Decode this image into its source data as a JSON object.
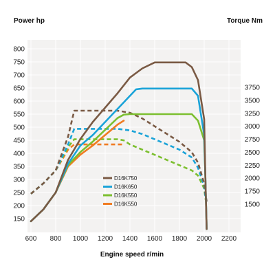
{
  "chart_data": {
    "type": "line",
    "title": "",
    "left_axis_title": "Power hp",
    "right_axis_title": "Torque Nm",
    "xlabel": "Engine speed r/min",
    "x_ticks": [
      "600",
      "800",
      "1000",
      "1200",
      "1400",
      "1600",
      "1800",
      "2000",
      "2200"
    ],
    "left_ticks": [
      "150",
      "200",
      "250",
      "300",
      "350",
      "400",
      "450",
      "500",
      "550",
      "600",
      "650",
      "700",
      "750",
      "800"
    ],
    "right_ticks": [
      "1500",
      "1750",
      "2000",
      "2250",
      "2500",
      "2750",
      "3000",
      "3250",
      "3500",
      "3750"
    ],
    "xlim": [
      600,
      2200
    ],
    "left_ylim": [
      150,
      800
    ],
    "right_ylim": [
      1500,
      3750
    ],
    "grid": true,
    "legend_position": "center",
    "series": [
      {
        "name": "D16K750",
        "color": "#7a5a44",
        "power": [
          [
            600,
            140
          ],
          [
            700,
            185
          ],
          [
            800,
            250
          ],
          [
            900,
            375
          ],
          [
            1000,
            455
          ],
          [
            1100,
            520
          ],
          [
            1200,
            575
          ],
          [
            1300,
            630
          ],
          [
            1400,
            690
          ],
          [
            1500,
            725
          ],
          [
            1600,
            748
          ],
          [
            1700,
            748
          ],
          [
            1800,
            748
          ],
          [
            1850,
            748
          ],
          [
            1900,
            730
          ],
          [
            1950,
            680
          ],
          [
            2000,
            530
          ],
          [
            2010,
            300
          ],
          [
            2020,
            110
          ]
        ],
        "torque": [
          [
            600,
            1700
          ],
          [
            700,
            1900
          ],
          [
            800,
            2150
          ],
          [
            900,
            2800
          ],
          [
            950,
            3300
          ],
          [
            1000,
            3300
          ],
          [
            1100,
            3300
          ],
          [
            1200,
            3300
          ],
          [
            1300,
            3300
          ],
          [
            1400,
            3260
          ],
          [
            1500,
            3150
          ],
          [
            1600,
            3000
          ],
          [
            1700,
            2850
          ],
          [
            1800,
            2700
          ],
          [
            1900,
            2500
          ],
          [
            1950,
            2300
          ],
          [
            2000,
            1900
          ],
          [
            2010,
            1700
          ],
          [
            2020,
            1550
          ]
        ]
      },
      {
        "name": "D16K650",
        "color": "#1aa3d8",
        "power": [
          [
            600,
            140
          ],
          [
            700,
            185
          ],
          [
            800,
            250
          ],
          [
            900,
            360
          ],
          [
            1000,
            430
          ],
          [
            1100,
            470
          ],
          [
            1200,
            520
          ],
          [
            1300,
            570
          ],
          [
            1400,
            620
          ],
          [
            1450,
            645
          ],
          [
            1500,
            648
          ],
          [
            1600,
            648
          ],
          [
            1700,
            648
          ],
          [
            1800,
            648
          ],
          [
            1900,
            648
          ],
          [
            1950,
            620
          ],
          [
            2000,
            470
          ],
          [
            2010,
            300
          ],
          [
            2020,
            110
          ]
        ],
        "torque": [
          [
            600,
            1700
          ],
          [
            700,
            1900
          ],
          [
            800,
            2150
          ],
          [
            900,
            2650
          ],
          [
            950,
            2950
          ],
          [
            1000,
            2950
          ],
          [
            1100,
            2950
          ],
          [
            1200,
            2950
          ],
          [
            1300,
            2950
          ],
          [
            1400,
            2920
          ],
          [
            1500,
            2850
          ],
          [
            1600,
            2750
          ],
          [
            1700,
            2650
          ],
          [
            1800,
            2550
          ],
          [
            1900,
            2400
          ],
          [
            1950,
            2200
          ],
          [
            2000,
            1850
          ],
          [
            2010,
            1650
          ],
          [
            2020,
            1550
          ]
        ]
      },
      {
        "name": "D16K550",
        "color": "#7cbf2f",
        "power": [
          [
            600,
            140
          ],
          [
            700,
            185
          ],
          [
            800,
            250
          ],
          [
            900,
            355
          ],
          [
            1000,
            405
          ],
          [
            1100,
            445
          ],
          [
            1200,
            490
          ],
          [
            1300,
            535
          ],
          [
            1350,
            548
          ],
          [
            1400,
            550
          ],
          [
            1500,
            550
          ],
          [
            1600,
            550
          ],
          [
            1700,
            550
          ],
          [
            1800,
            550
          ],
          [
            1900,
            550
          ],
          [
            1950,
            525
          ],
          [
            2000,
            450
          ],
          [
            2010,
            300
          ],
          [
            2020,
            110
          ]
        ],
        "torque": [
          [
            600,
            1700
          ],
          [
            700,
            1900
          ],
          [
            800,
            2150
          ],
          [
            900,
            2600
          ],
          [
            950,
            2750
          ],
          [
            1000,
            2750
          ],
          [
            1100,
            2750
          ],
          [
            1200,
            2750
          ],
          [
            1300,
            2750
          ],
          [
            1350,
            2730
          ],
          [
            1400,
            2650
          ],
          [
            1500,
            2550
          ],
          [
            1600,
            2450
          ],
          [
            1700,
            2350
          ],
          [
            1800,
            2250
          ],
          [
            1900,
            2150
          ],
          [
            1950,
            2050
          ],
          [
            2000,
            1800
          ],
          [
            2010,
            1600
          ],
          [
            2020,
            1550
          ]
        ]
      },
      {
        "name": "D16K550",
        "color": "#f07c22",
        "power": [
          [
            600,
            140
          ],
          [
            700,
            185
          ],
          [
            800,
            250
          ],
          [
            900,
            350
          ],
          [
            1000,
            395
          ],
          [
            1100,
            430
          ],
          [
            1200,
            470
          ],
          [
            1300,
            510
          ],
          [
            1350,
            525
          ]
        ],
        "torque": [
          [
            600,
            1700
          ],
          [
            700,
            1900
          ],
          [
            800,
            2150
          ],
          [
            900,
            2550
          ],
          [
            950,
            2650
          ],
          [
            1000,
            2650
          ],
          [
            1100,
            2650
          ],
          [
            1200,
            2650
          ],
          [
            1300,
            2650
          ],
          [
            1350,
            2650
          ]
        ]
      }
    ]
  }
}
